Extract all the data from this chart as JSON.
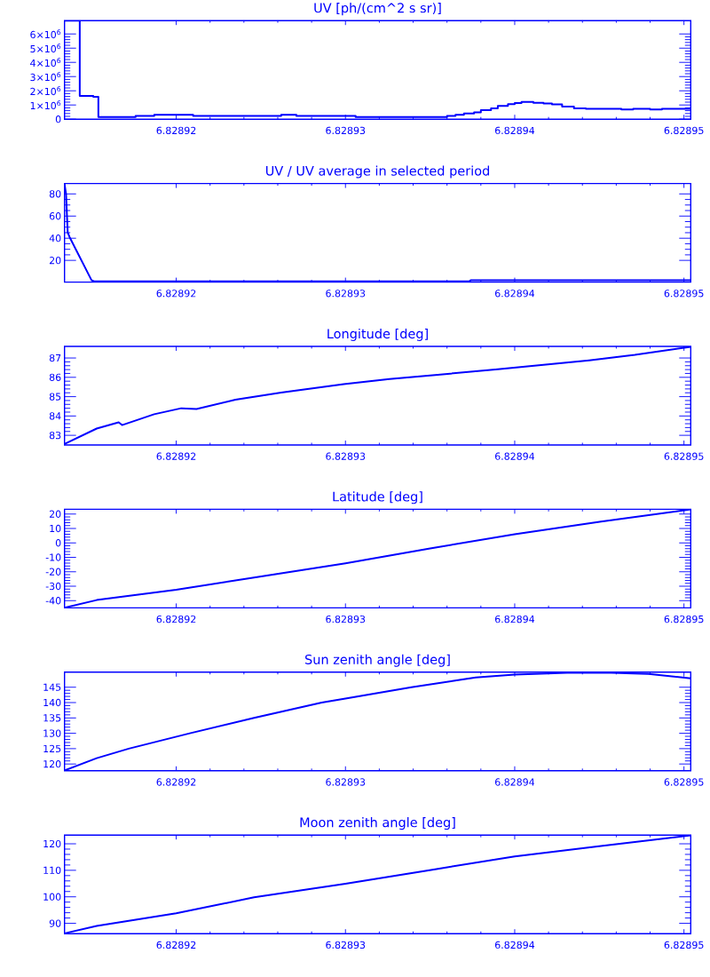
{
  "chart_data": [
    {
      "type": "step",
      "title": "UV [ph/(cm^2 s sr)]",
      "x": [
        6.8289134,
        6.8289143,
        6.8289151,
        6.8289154,
        6.8289176,
        6.8289187,
        6.828921,
        6.8289262,
        6.8289271,
        6.8289306,
        6.828936,
        6.8289365,
        6.828937,
        6.8289376,
        6.828938,
        6.8289386,
        6.828939,
        6.8289396,
        6.82894,
        6.8289404,
        6.8289411,
        6.8289417,
        6.8289422,
        6.8289428,
        6.8289435,
        6.8289442,
        6.8289463,
        6.828947,
        6.828948,
        6.8289487,
        6.8289504
      ],
      "values": [
        6940000,
        1630000,
        1580000,
        160000,
        230000,
        310000,
        230000,
        310000,
        230000,
        160000,
        230000,
        310000,
        410000,
        480000,
        640000,
        770000,
        940000,
        1060000,
        1140000,
        1210000,
        1160000,
        1100000,
        1040000,
        890000,
        770000,
        730000,
        690000,
        730000,
        690000,
        730000,
        730000
      ],
      "color": "#0000ff",
      "xlim": [
        6.8289134,
        6.8289504
      ],
      "ylim": [
        0,
        6940000
      ],
      "xticks": [
        6.82892,
        6.82893,
        6.82894,
        6.82895
      ],
      "yticks": [
        0,
        {
          "value": 1000000,
          "label": "1×10$^{6}$"
        },
        {
          "value": 2000000,
          "label": "2×10$^{6}$"
        },
        {
          "value": 3000000,
          "label": "3×10$^{6}$"
        },
        {
          "value": 4000000,
          "label": "4×10$^{6}$"
        },
        {
          "value": 5000000,
          "label": "5×10$^{6}$"
        },
        {
          "value": 6000000,
          "label": "6×10$^{6}$"
        }
      ]
    },
    {
      "type": "line",
      "title": "UV / UV average in selected period",
      "x": [
        6.8289134,
        6.82891349,
        6.82891354,
        6.82891359,
        6.8289137,
        6.828915,
        6.8289152,
        6.8289373,
        6.8289374,
        6.8289504
      ],
      "values": [
        89,
        80,
        62,
        45,
        41,
        2,
        1,
        1,
        2,
        2
      ],
      "color": "#0000ff",
      "xlim": [
        6.8289134,
        6.8289504
      ],
      "ylim": [
        0.4,
        89.4
      ],
      "xticks": [
        6.82892,
        6.82893,
        6.82894,
        6.82895
      ],
      "yticks": [
        20,
        40,
        60,
        80
      ]
    },
    {
      "type": "line",
      "title": "Longitude [deg]",
      "x": [
        6.8289134,
        6.8289153,
        6.8289166,
        6.8289168,
        6.8289187,
        6.8289203,
        6.8289212,
        6.8289235,
        6.8289262,
        6.8289299,
        6.8289326,
        6.8289353,
        6.828939,
        6.8289417,
        6.8289444,
        6.8289471,
        6.8289504
      ],
      "values": [
        82.55,
        83.35,
        83.67,
        83.53,
        84.09,
        84.4,
        84.36,
        84.84,
        85.21,
        85.65,
        85.91,
        86.12,
        86.42,
        86.65,
        86.88,
        87.16,
        87.58
      ],
      "color": "#0000ff",
      "xlim": [
        6.8289134,
        6.8289504
      ],
      "ylim": [
        82.5,
        87.6
      ],
      "xticks": [
        6.82892,
        6.82893,
        6.82894,
        6.82895
      ],
      "yticks": [
        83,
        84,
        85,
        86,
        87
      ]
    },
    {
      "type": "line",
      "title": "Latitude [deg]",
      "x": [
        6.8289134,
        6.8289153,
        6.82892,
        6.8289246,
        6.82893,
        6.828935,
        6.82894,
        6.8289451,
        6.8289504
      ],
      "values": [
        -44.9,
        -39.6,
        -32.4,
        -24,
        -14.2,
        -3.8,
        6.0,
        14.8,
        23.2
      ],
      "color": "#0000ff",
      "xlim": [
        6.8289134,
        6.8289504
      ],
      "ylim": [
        -45,
        23.3
      ],
      "xticks": [
        6.82892,
        6.82893,
        6.82894,
        6.82895
      ],
      "yticks": [
        -40,
        -30,
        -20,
        -10,
        0,
        10,
        20
      ]
    },
    {
      "type": "line",
      "title": "Sun zenith angle [deg]",
      "x": [
        6.8289134,
        6.8289153,
        6.8289172,
        6.8289208,
        6.8289246,
        6.8289286,
        6.82893,
        6.8289339,
        6.8289377,
        6.82894,
        6.8289431,
        6.8289457,
        6.8289479,
        6.8289504
      ],
      "values": [
        117.9,
        121.9,
        125,
        130,
        135,
        140,
        141.3,
        145,
        148.2,
        149.1,
        149.7,
        149.7,
        149.3,
        147.9
      ],
      "color": "#0000ff",
      "xlim": [
        6.8289134,
        6.8289504
      ],
      "ylim": [
        117.8,
        149.9
      ],
      "xticks": [
        6.82892,
        6.82893,
        6.82894,
        6.82895
      ],
      "yticks": [
        120,
        125,
        130,
        135,
        140,
        145
      ]
    },
    {
      "type": "line",
      "title": "Moon zenith angle [deg]",
      "x": [
        6.8289134,
        6.8289153,
        6.82892,
        6.8289246,
        6.82893,
        6.8289353,
        6.82894,
        6.8289451,
        6.8289504
      ],
      "values": [
        86.2,
        89.0,
        93.8,
        99.8,
        104.9,
        110.4,
        115.2,
        119.2,
        123.2
      ],
      "color": "#0000ff",
      "xlim": [
        6.8289134,
        6.8289504
      ],
      "ylim": [
        86.1,
        123.3
      ],
      "xticks": [
        6.82892,
        6.82893,
        6.82894,
        6.82895
      ],
      "yticks": [
        90,
        100,
        110,
        120
      ]
    }
  ]
}
